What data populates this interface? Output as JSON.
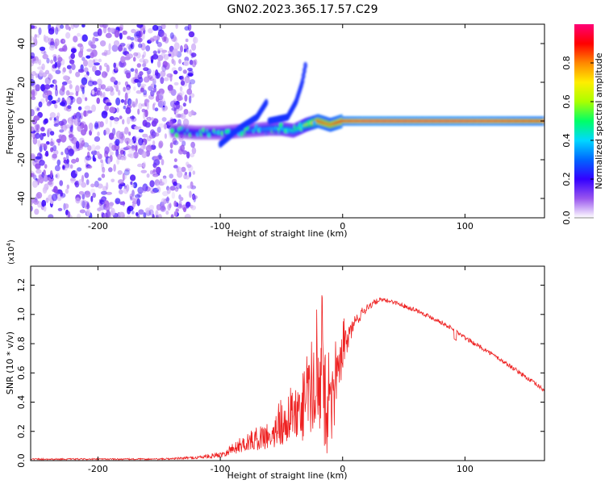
{
  "figure_title": "GN02.2023.365.17.57.C29",
  "colorbar": {
    "label": "Normalized spectral amplitude",
    "ticks": [
      "0.0",
      "0.2",
      "0.4",
      "0.6",
      "0.8"
    ],
    "tick_values": [
      0.0,
      0.2,
      0.4,
      0.6,
      0.8
    ],
    "range": [
      0,
      1
    ],
    "colormap": [
      "#ffffff",
      "#9955ee",
      "#3300ff",
      "#0066ff",
      "#00d8ff",
      "#00ff66",
      "#aaff00",
      "#ffee00",
      "#ff8800",
      "#ff0000",
      "#ff0077"
    ]
  },
  "chart_data": [
    {
      "type": "heatmap",
      "title": "",
      "xlabel": "Height of straight line (km)",
      "ylabel": "Frequency (Hz)",
      "xlim": [
        -255,
        165
      ],
      "ylim": [
        -50,
        50
      ],
      "xticks": [
        -200,
        -100,
        0,
        100
      ],
      "xtick_labels": [
        "-200",
        "-100",
        "0",
        "100"
      ],
      "yticks": [
        -40,
        -20,
        0,
        20,
        40
      ],
      "ytick_labels": [
        "-40",
        "-20",
        "0",
        "20",
        "40"
      ],
      "noise_region_x": [
        -255,
        -120
      ],
      "noise_amplitude": 0.1,
      "ridge": {
        "description": "spectral line along frequency ~0 Hz",
        "x": [
          -140,
          -120,
          -100,
          -80,
          -60,
          -50,
          -40,
          -30,
          -20,
          -10,
          0,
          20,
          60,
          100,
          165
        ],
        "freq_hz": [
          -5,
          -6,
          -6,
          -5,
          -4,
          -4,
          -5,
          -2,
          0,
          -2,
          0,
          0,
          0,
          0,
          0
        ],
        "amplitude": [
          0.25,
          0.25,
          0.3,
          0.3,
          0.35,
          0.4,
          0.45,
          0.6,
          0.85,
          0.8,
          0.9,
          0.95,
          0.95,
          0.95,
          0.9
        ]
      },
      "branches": [
        {
          "x": [
            -100,
            -85,
            -70,
            -62
          ],
          "freq_hz": [
            -12,
            -4,
            2,
            10
          ],
          "amplitude": 0.25
        },
        {
          "x": [
            -60,
            -45,
            -38,
            -33,
            -30
          ],
          "freq_hz": [
            0,
            2,
            10,
            20,
            30
          ],
          "amplitude": 0.25
        }
      ]
    },
    {
      "type": "line",
      "title": "",
      "xlabel": "Height of straight line (km)",
      "ylabel": "SNR (10 * v/v)",
      "y_multiplier_label": "(x10",
      "y_multiplier_exp": "4",
      "y_multiplier_close": ")",
      "xlim": [
        -255,
        165
      ],
      "ylim": [
        0,
        1.33
      ],
      "xticks": [
        -200,
        -100,
        0,
        100
      ],
      "xtick_labels": [
        "-200",
        "-100",
        "0",
        "100"
      ],
      "yticks": [
        0.0,
        0.2,
        0.4,
        0.6,
        0.8,
        1.0,
        1.2
      ],
      "ytick_labels": [
        "0.0",
        "0.2",
        "0.4",
        "0.6",
        "0.8",
        "1.0",
        "1.2"
      ],
      "series": [
        {
          "color": "#ee2222",
          "x": [
            -255,
            -200,
            -150,
            -120,
            -100,
            -90,
            -80,
            -70,
            -60,
            -50,
            -40,
            -30,
            -25,
            -20,
            -15,
            -10,
            -5,
            0,
            10,
            20,
            30,
            40,
            60,
            80,
            90,
            100,
            120,
            140,
            165
          ],
          "y": [
            0.01,
            0.01,
            0.01,
            0.02,
            0.04,
            0.08,
            0.12,
            0.15,
            0.18,
            0.22,
            0.25,
            0.35,
            0.45,
            0.6,
            0.4,
            0.25,
            0.5,
            0.75,
            0.95,
            1.05,
            1.1,
            1.09,
            1.03,
            0.95,
            0.9,
            0.84,
            0.74,
            0.63,
            0.48
          ],
          "noise_amplitude": [
            0.005,
            0.005,
            0.005,
            0.01,
            0.02,
            0.04,
            0.06,
            0.08,
            0.1,
            0.12,
            0.15,
            0.25,
            0.3,
            0.35,
            0.4,
            0.3,
            0.2,
            0.12,
            0.05,
            0.03,
            0.015,
            0.015,
            0.015,
            0.015,
            0.015,
            0.015,
            0.015,
            0.015,
            0.015
          ]
        }
      ]
    }
  ]
}
